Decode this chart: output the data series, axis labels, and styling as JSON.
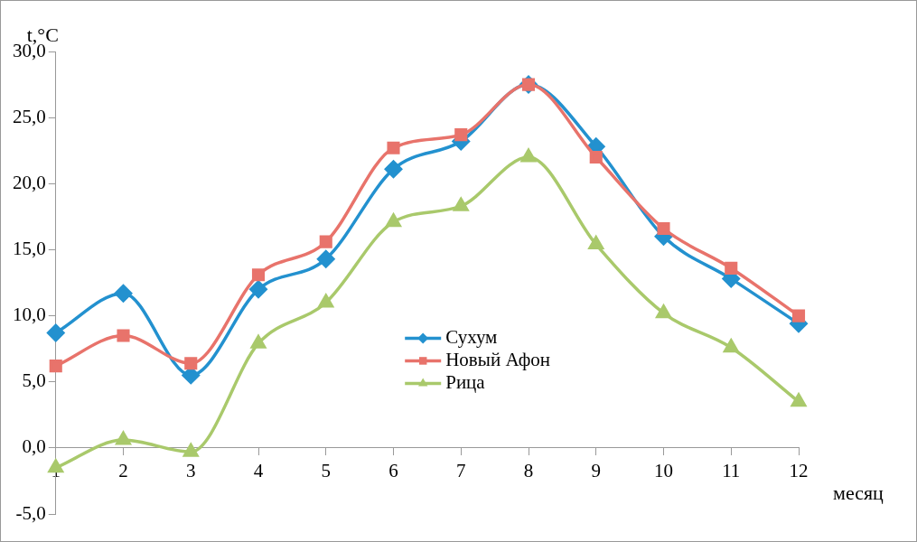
{
  "chart_data": {
    "type": "line",
    "xlabel": "месяц",
    "ylabel": "t,°C",
    "categories": [
      "1",
      "2",
      "3",
      "4",
      "5",
      "6",
      "7",
      "8",
      "9",
      "10",
      "11",
      "12"
    ],
    "series": [
      {
        "name": "Сухум",
        "color": "#2391cf",
        "marker": "diamond",
        "values": [
          8.7,
          11.7,
          5.5,
          12.0,
          14.3,
          21.1,
          23.2,
          27.5,
          22.8,
          16.0,
          12.8,
          9.4
        ]
      },
      {
        "name": "Новый Афон",
        "color": "#e8736b",
        "marker": "square",
        "values": [
          6.2,
          8.5,
          6.4,
          13.1,
          15.6,
          22.7,
          23.7,
          27.5,
          22.0,
          16.6,
          13.6,
          10.0
        ]
      },
      {
        "name": "Рица",
        "color": "#a9c96b",
        "marker": "triangle",
        "values": [
          -1.5,
          0.6,
          -0.3,
          7.9,
          11.0,
          17.1,
          18.3,
          22.0,
          15.4,
          10.2,
          7.6,
          3.5
        ]
      }
    ],
    "ylim": [
      -5,
      30
    ],
    "yticks": [
      {
        "value": -5,
        "label": "-5,0"
      },
      {
        "value": 0,
        "label": "0,0"
      },
      {
        "value": 5,
        "label": "5,0"
      },
      {
        "value": 10,
        "label": "10,0"
      },
      {
        "value": 15,
        "label": "15,0"
      },
      {
        "value": 20,
        "label": "20,0"
      },
      {
        "value": 25,
        "label": "25,0"
      },
      {
        "value": 30,
        "label": "30,0"
      }
    ],
    "grid": false,
    "legend": "center",
    "line_style": "solid"
  }
}
